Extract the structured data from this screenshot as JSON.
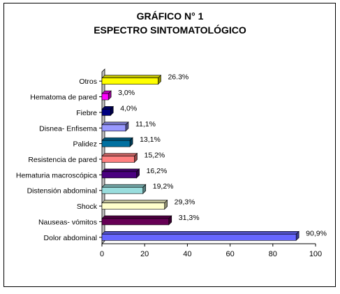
{
  "chart_data": {
    "type": "bar",
    "orientation": "horizontal",
    "title": "GRÁFICO N° 1",
    "subtitle": "ESPECTRO SINTOMATOLÓGICO",
    "xlim": [
      0,
      100
    ],
    "xticks": [
      "0",
      "20",
      "40",
      "60",
      "80",
      "100"
    ],
    "grid": false,
    "legend": "none",
    "categories": [
      "Otros",
      "Hematoma de pared",
      "Fiebre",
      "Disnea- Enfisema",
      "Palidez",
      "Resistencia de pared",
      "Hematuria macroscópica",
      "Distensión abdominal",
      "Shock",
      "Nauseas- vómitos",
      "Dolor abdominal"
    ],
    "values": [
      26.3,
      3.0,
      4.0,
      11.1,
      13.1,
      15.2,
      16.2,
      19.2,
      29.3,
      31.3,
      90.9
    ],
    "data_labels": [
      "26.3%",
      "3,0%",
      "4,0%",
      "11,1%",
      "13,1%",
      "15,2%",
      "16,2%",
      "19,2%",
      "29,3%",
      "31,3%",
      "90,9%"
    ],
    "colors": [
      "#ffff00",
      "#ff00ff",
      "#000080",
      "#9999ff",
      "#0070a0",
      "#ff8080",
      "#4a0080",
      "#99dddd",
      "#ffffcc",
      "#660055",
      "#6666ff"
    ]
  }
}
